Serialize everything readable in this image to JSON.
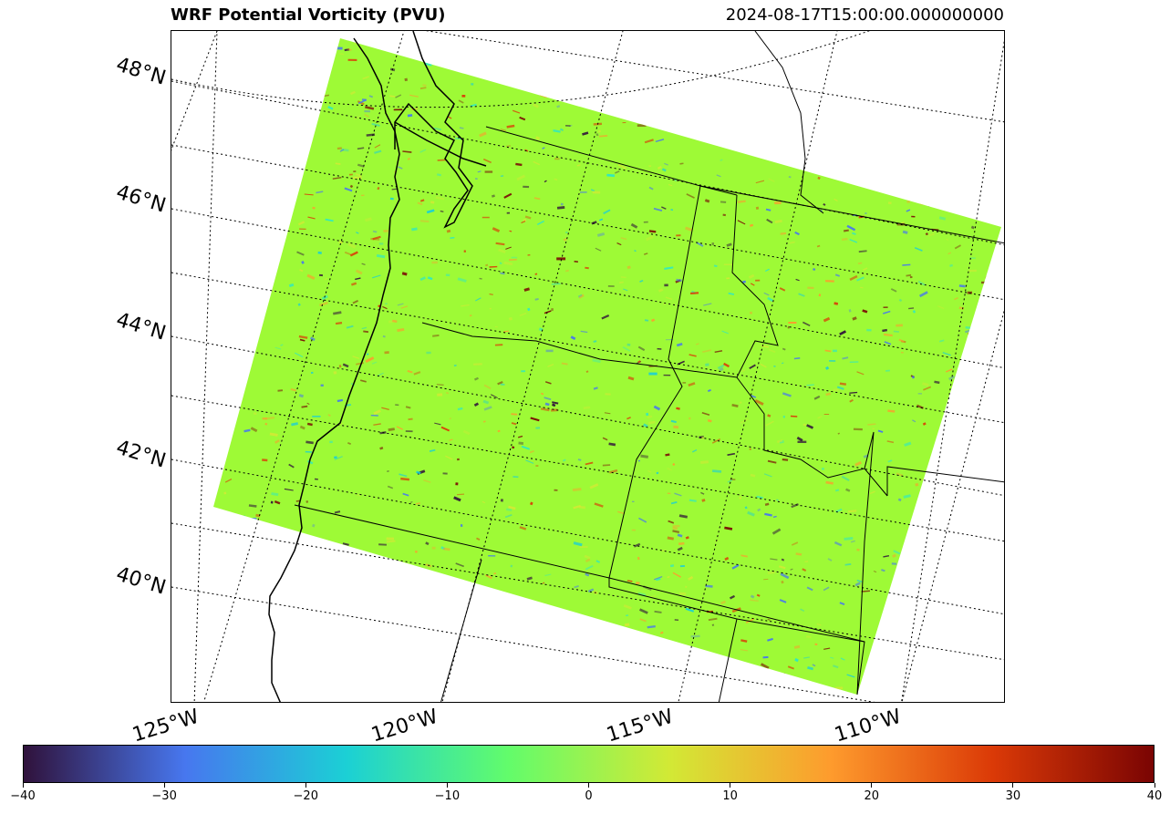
{
  "title": "WRF Potential Vorticity (PVU)",
  "timestamp": "2024-08-17T15:00:00.000000000",
  "lat_labels": [
    "48°N",
    "46°N",
    "44°N",
    "42°N",
    "40°N"
  ],
  "lon_labels": [
    "125°W",
    "120°W",
    "115°W",
    "110°W"
  ],
  "colorbar": {
    "colormap": "turbo",
    "vmin": -40,
    "vmax": 40,
    "ticks": [
      "−40",
      "−30",
      "−20",
      "−10",
      "0",
      "10",
      "20",
      "30",
      "40"
    ],
    "colors": [
      "#30123b",
      "#4777ef",
      "#1bd0d5",
      "#62fc6b",
      "#d2e935",
      "#fe9b2d",
      "#db3a07",
      "#7a0403"
    ]
  },
  "field": {
    "background_color": "#9efa36",
    "noise_colors": [
      "#1bd0d5",
      "#2ee8c3",
      "#fe9b2d",
      "#db3a07",
      "#7a0403",
      "#30123b",
      "#4777ef",
      "#d2e935"
    ]
  }
}
